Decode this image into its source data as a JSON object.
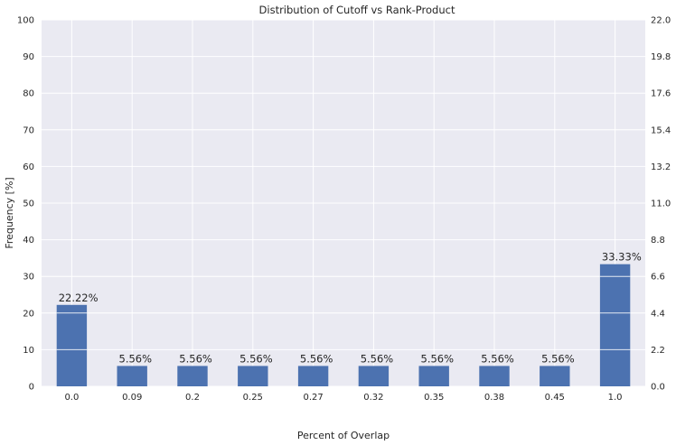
{
  "chart_data": {
    "type": "bar",
    "title": "Distribution of Cutoff vs Rank-Product",
    "xlabel": "Percent of Overlap",
    "ylabel": "Frequency [%]",
    "categories": [
      "0.0",
      "0.09",
      "0.2",
      "0.25",
      "0.27",
      "0.32",
      "0.35",
      "0.38",
      "0.45",
      "1.0"
    ],
    "values": [
      22.22,
      5.56,
      5.56,
      5.56,
      5.56,
      5.56,
      5.56,
      5.56,
      5.56,
      33.33
    ],
    "data_labels": [
      "22.22%",
      "5.56%",
      "5.56%",
      "5.56%",
      "5.56%",
      "5.56%",
      "5.56%",
      "5.56%",
      "5.56%",
      "33.33%"
    ],
    "ylim": [
      0,
      100
    ],
    "yticks": [
      "0",
      "10",
      "20",
      "30",
      "40",
      "50",
      "60",
      "70",
      "80",
      "90",
      "100"
    ],
    "y2lim": [
      0,
      22
    ],
    "y2ticks": [
      "0.0",
      "2.2",
      "4.4",
      "6.6",
      "8.8",
      "11.0",
      "13.2",
      "15.4",
      "17.6",
      "19.8",
      "22.0"
    ],
    "grid": true,
    "colors": {
      "bar": "#4c72b0",
      "background": "#eaeaf2",
      "grid": "#ffffff",
      "text": "#262626"
    }
  }
}
